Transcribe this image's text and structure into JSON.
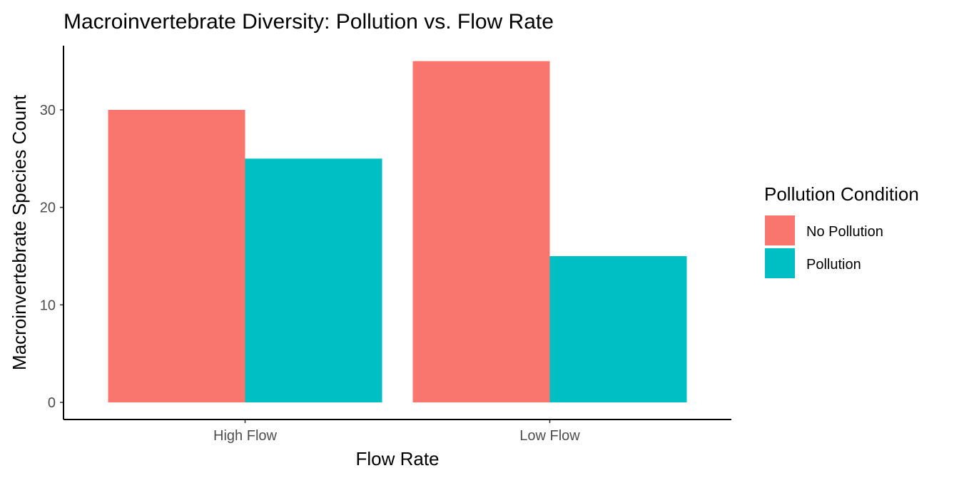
{
  "chart_data": {
    "type": "bar",
    "title": "Macroinvertebrate Diversity: Pollution vs. Flow Rate",
    "xlabel": "Flow Rate",
    "ylabel": "Macroinvertebrate Species Count",
    "categories": [
      "High Flow",
      "Low Flow"
    ],
    "series": [
      {
        "name": "No Pollution",
        "values": [
          30,
          35
        ],
        "color": "#F8766D"
      },
      {
        "name": "Pollution",
        "values": [
          25,
          15
        ],
        "color": "#00BFC4"
      }
    ],
    "ylim": [
      0,
      36.75
    ],
    "yticks": [
      0,
      10,
      20,
      30
    ],
    "legend": {
      "title": "Pollution Condition",
      "position": "right"
    },
    "grid": false
  }
}
